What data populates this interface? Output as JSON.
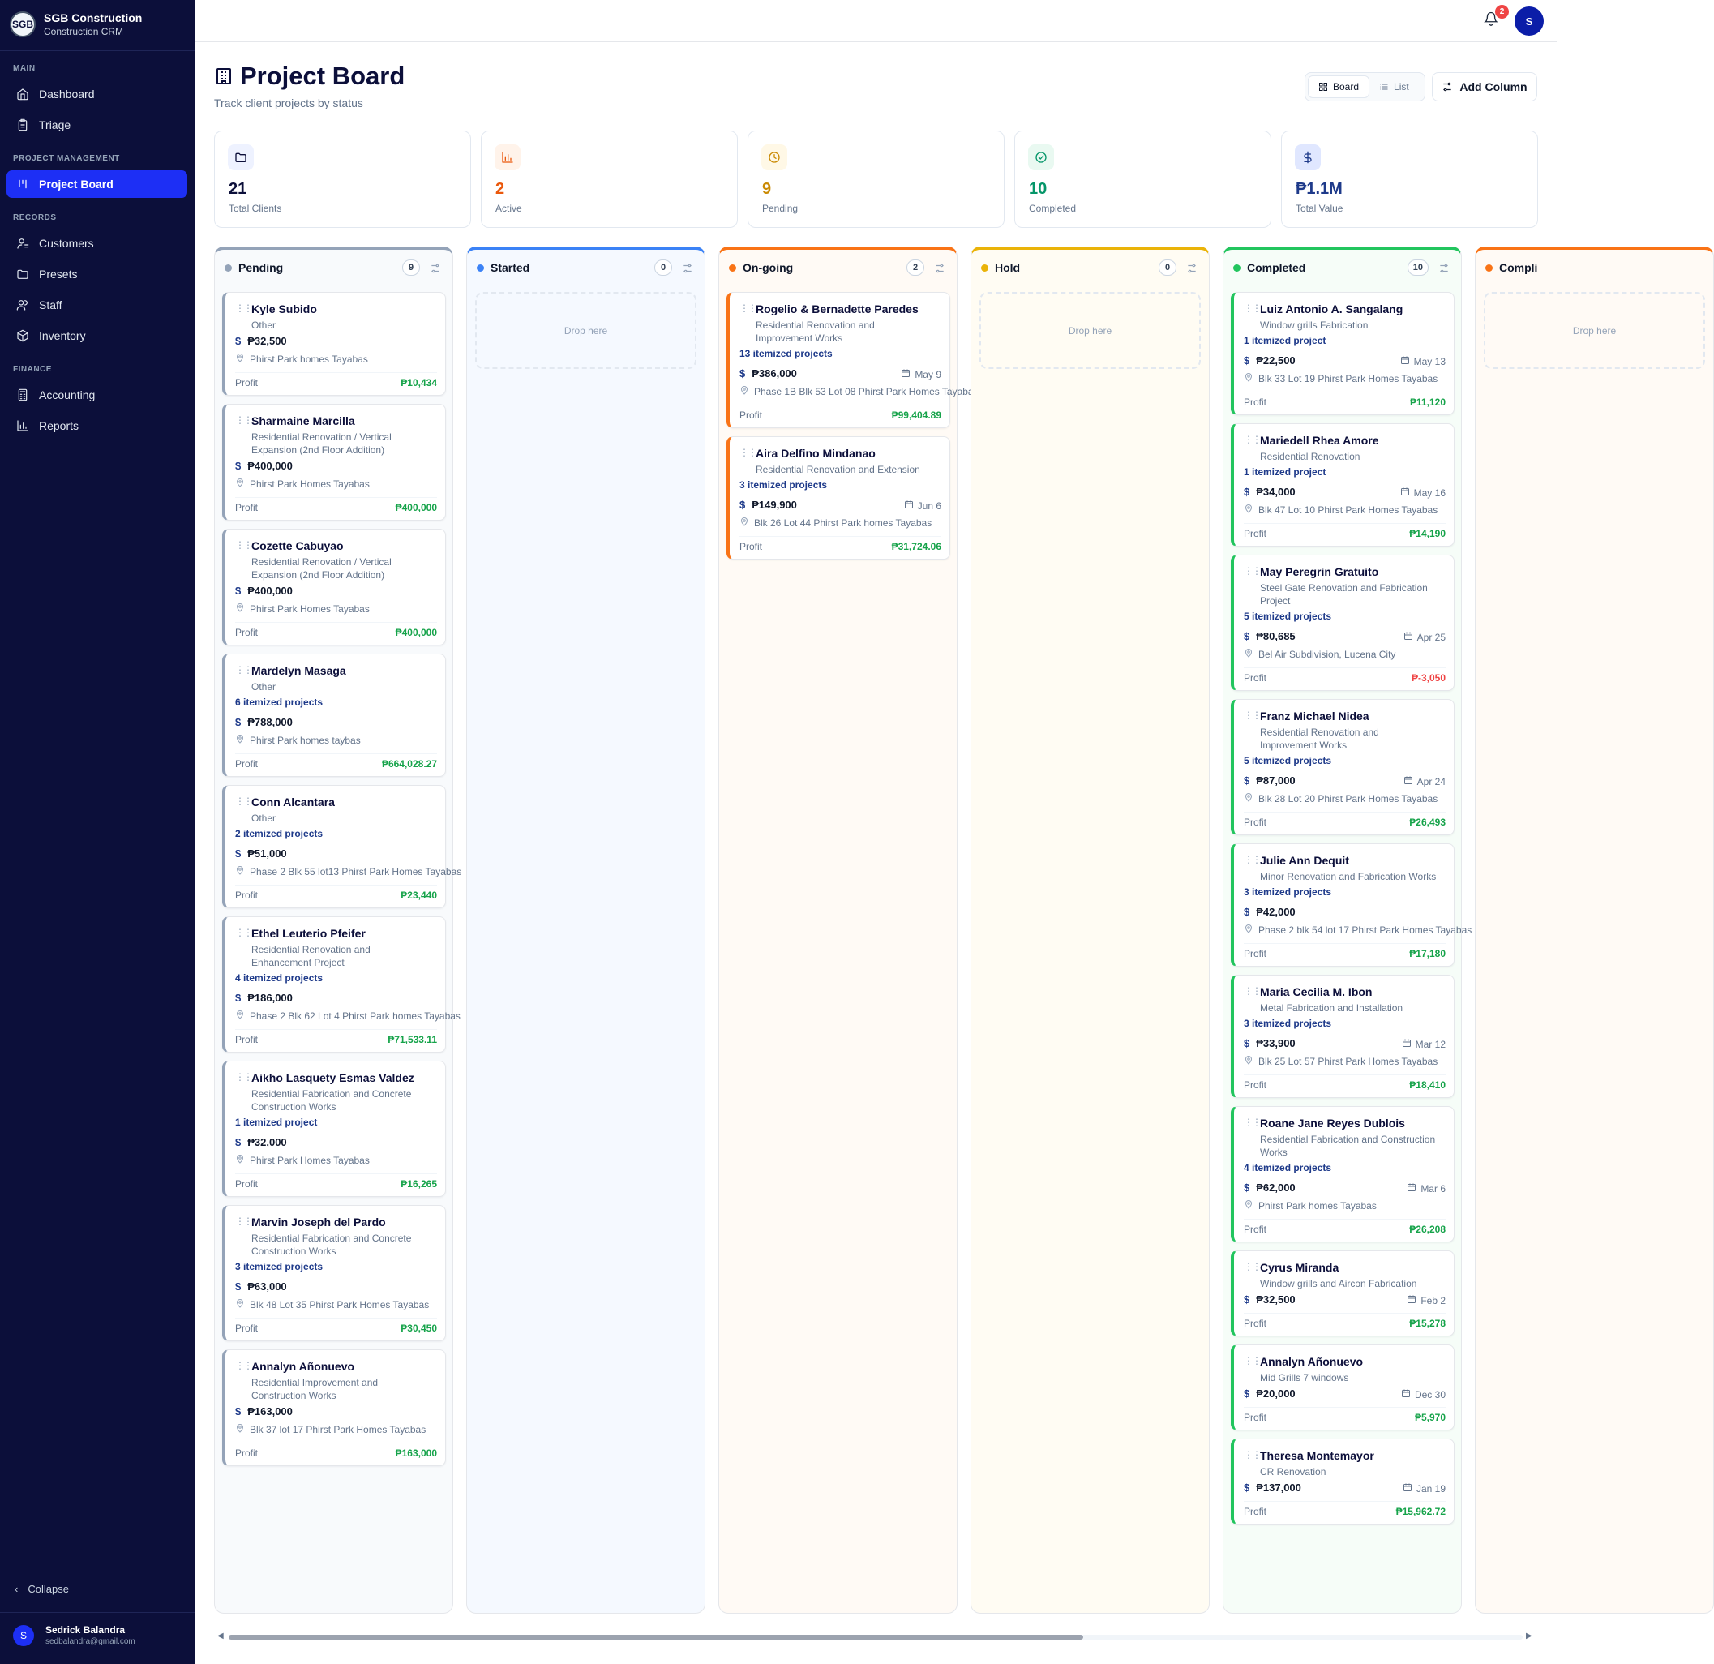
{
  "brand": {
    "logo": "SGB",
    "name": "SGB Construction",
    "subtitle": "Construction CRM"
  },
  "nav": {
    "main_label": "MAIN",
    "dashboard": "Dashboard",
    "triage": "Triage",
    "pm_label": "PROJECT MANAGEMENT",
    "project_board": "Project Board",
    "records_label": "RECORDS",
    "customers": "Customers",
    "presets": "Presets",
    "staff": "Staff",
    "inventory": "Inventory",
    "finance_label": "FINANCE",
    "accounting": "Accounting",
    "reports": "Reports",
    "collapse": "Collapse"
  },
  "user": {
    "initial": "S",
    "name": "Sedrick Balandra",
    "email": "sedbalandra@gmail.com"
  },
  "topbar": {
    "notification_count": "2",
    "avatar_initial": "S"
  },
  "page": {
    "title": "Project Board",
    "subtitle": "Track client projects by status"
  },
  "toolbar": {
    "board_label": "Board",
    "list_label": "List",
    "add_column_label": "Add Column"
  },
  "stats": [
    {
      "value": "21",
      "label": "Total Clients",
      "color": "#0c0f3a",
      "icon": "folder-icon"
    },
    {
      "value": "2",
      "label": "Active",
      "color": "#ea580c",
      "icon": "bar-chart-icon"
    },
    {
      "value": "9",
      "label": "Pending",
      "color": "#ca8a04",
      "icon": "clock-icon"
    },
    {
      "value": "10",
      "label": "Completed",
      "color": "#059669",
      "icon": "check-circle-icon"
    },
    {
      "value": "₱1.1M",
      "label": "Total Value",
      "color": "#1e3a8a",
      "icon": "dollar-icon"
    }
  ],
  "profit_label": "Profit",
  "drop_label": "Drop here",
  "columns": [
    {
      "name": "Pending",
      "count": "9",
      "color": "#94a3b8",
      "bg": "#f8fafc",
      "cards": [
        {
          "name": "Kyle Subido",
          "category": "Other",
          "amount": "₱32,500",
          "location": "Phirst Park homes Tayabas",
          "profit": "₱10,434"
        },
        {
          "name": "Sharmaine Marcilla",
          "category": "Residential Renovation / Vertical Expansion (2nd Floor Addition)",
          "amount": "₱400,000",
          "location": "Phirst Park Homes Tayabas",
          "profit": "₱400,000"
        },
        {
          "name": "Cozette Cabuyao",
          "category": "Residential Renovation / Vertical Expansion (2nd Floor Addition)",
          "amount": "₱400,000",
          "location": "Phirst Park Homes Tayabas",
          "profit": "₱400,000"
        },
        {
          "name": "Mardelyn Masaga",
          "category": "Other",
          "items": "6 itemized projects",
          "amount": "₱788,000",
          "location": "Phirst Park homes taybas",
          "profit": "₱664,028.27"
        },
        {
          "name": "Conn Alcantara",
          "category": "Other",
          "items": "2 itemized projects",
          "amount": "₱51,000",
          "location": "Phase 2 Blk 55 lot13 Phirst Park Homes Tayabas",
          "profit": "₱23,440"
        },
        {
          "name": "Ethel Leuterio Pfeifer",
          "category": "Residential Renovation and Enhancement Project",
          "items": "4 itemized projects",
          "amount": "₱186,000",
          "location": "Phase 2 Blk 62 Lot 4 Phirst Park homes Tayabas",
          "profit": "₱71,533.11"
        },
        {
          "name": "Aikho Lasquety Esmas Valdez",
          "category": "Residential Fabrication and Concrete Construction Works",
          "items": "1 itemized project",
          "amount": "₱32,000",
          "location": "Phirst Park Homes Tayabas",
          "profit": "₱16,265"
        },
        {
          "name": "Marvin Joseph del Pardo",
          "category": "Residential Fabrication and Concrete Construction Works",
          "items": "3 itemized projects",
          "amount": "₱63,000",
          "location": "Blk 48 Lot 35 Phirst Park Homes Tayabas",
          "profit": "₱30,450"
        },
        {
          "name": "Annalyn Añonuevo",
          "category": "Residential Improvement and Construction Works",
          "amount": "₱163,000",
          "location": "Blk 37 lot 17 Phirst Park Homes Tayabas",
          "profit": "₱163,000"
        }
      ]
    },
    {
      "name": "Started",
      "count": "0",
      "color": "#3b82f6",
      "bg": "#f5f9ff",
      "cards": []
    },
    {
      "name": "On-going",
      "count": "2",
      "color": "#f97316",
      "bg": "#fffaf5",
      "cards": [
        {
          "name": "Rogelio & Bernadette Paredes",
          "category": "Residential Renovation and Improvement Works",
          "items": "13 itemized projects",
          "amount": "₱386,000",
          "date": "May 9",
          "location": "Phase 1B Blk 53 Lot 08 Phirst Park Homes Tayabas",
          "profit": "₱99,404.89"
        },
        {
          "name": "Aira Delfino Mindanao",
          "category": "Residential Renovation and Extension",
          "items": "3 itemized projects",
          "amount": "₱149,900",
          "date": "Jun 6",
          "location": "Blk 26 Lot 44 Phirst Park homes Tayabas",
          "profit": "₱31,724.06"
        }
      ]
    },
    {
      "name": "Hold",
      "count": "0",
      "color": "#eab308",
      "bg": "#fffcf3",
      "cards": []
    },
    {
      "name": "Completed",
      "count": "10",
      "color": "#22c55e",
      "bg": "#f6fdf8",
      "cards": [
        {
          "name": "Luiz Antonio A. Sangalang",
          "category": "Window grills Fabrication",
          "items": "1 itemized project",
          "amount": "₱22,500",
          "date": "May 13",
          "location": "Blk 33 Lot 19 Phirst Park Homes Tayabas",
          "profit": "₱11,120"
        },
        {
          "name": "Mariedell Rhea Amore",
          "category": "Residential Renovation",
          "items": "1 itemized project",
          "amount": "₱34,000",
          "date": "May 16",
          "location": "Blk 47 Lot 10 Phirst Park Homes Tayabas",
          "profit": "₱14,190"
        },
        {
          "name": "May Peregrin Gratuito",
          "category": "Steel Gate Renovation and Fabrication Project",
          "items": "5 itemized projects",
          "amount": "₱80,685",
          "date": "Apr 25",
          "location": "Bel Air Subdivision, Lucena City",
          "profit": "₱-3,050",
          "negative": true
        },
        {
          "name": "Franz Michael Nidea",
          "category": "Residential Renovation and Improvement Works",
          "items": "5 itemized projects",
          "amount": "₱87,000",
          "date": "Apr 24",
          "location": "Blk 28 Lot 20 Phirst Park Homes Tayabas",
          "profit": "₱26,493"
        },
        {
          "name": "Julie Ann Dequit",
          "category": "Minor Renovation and Fabrication Works",
          "items": "3 itemized projects",
          "amount": "₱42,000",
          "location": "Phase 2 blk 54 lot 17 Phirst Park Homes Tayabas",
          "profit": "₱17,180"
        },
        {
          "name": "Maria Cecilia M. Ibon",
          "category": "Metal Fabrication and Installation",
          "items": "3 itemized projects",
          "amount": "₱33,900",
          "date": "Mar 12",
          "location": "Blk 25 Lot 57 Phirst Park Homes Tayabas",
          "profit": "₱18,410"
        },
        {
          "name": "Roane Jane Reyes Dublois",
          "category": "Residential Fabrication and Construction Works",
          "items": "4 itemized projects",
          "amount": "₱62,000",
          "date": "Mar 6",
          "location": "Phirst Park homes Tayabas",
          "profit": "₱26,208"
        },
        {
          "name": "Cyrus Miranda",
          "category": "Window grills and Aircon Fabrication",
          "amount": "₱32,500",
          "date": "Feb 2",
          "profit": "₱15,278"
        },
        {
          "name": "Annalyn Añonuevo",
          "category": "Mid Grills 7 windows",
          "amount": "₱20,000",
          "date": "Dec 30",
          "profit": "₱5,970"
        },
        {
          "name": "Theresa Montemayor",
          "category": "CR Renovation",
          "amount": "₱137,000",
          "date": "Jan 19",
          "profit": "₱15,962.72"
        }
      ]
    },
    {
      "name": "Compli",
      "count": "",
      "color": "#f97316",
      "bg": "#fffaf5",
      "cards": []
    }
  ]
}
